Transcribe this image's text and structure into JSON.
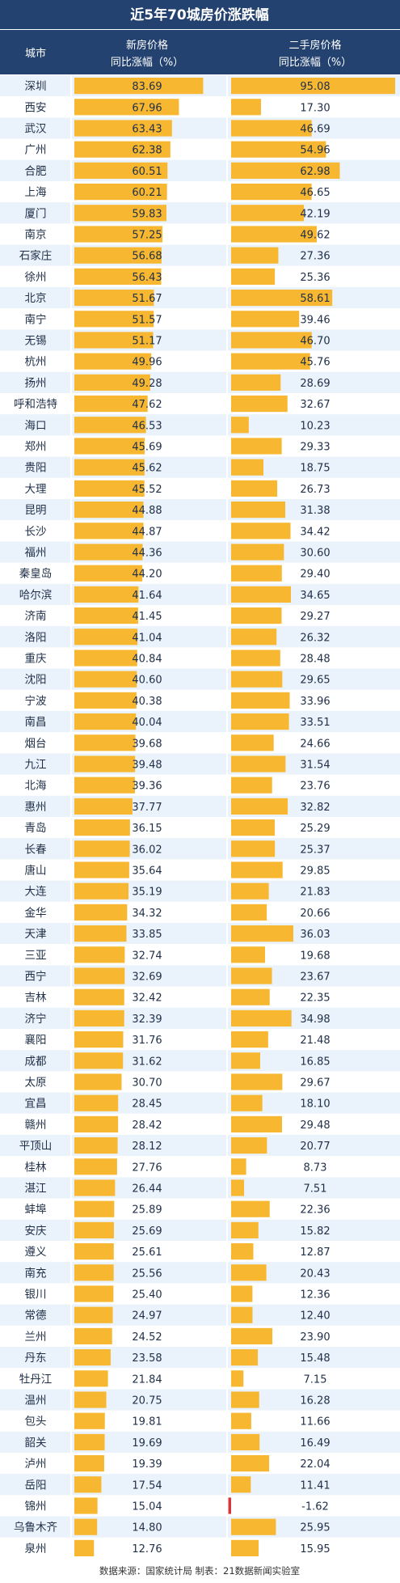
{
  "chart_data": {
    "type": "bar",
    "title": "近5年70城房价涨跌幅",
    "header": {
      "city": "城市",
      "new_line1": "新房价格",
      "new_line2": "同比涨幅（%）",
      "second_line1": "二手房价格",
      "second_line2": "同比涨幅（%）"
    },
    "categories": [
      "深圳",
      "西安",
      "武汉",
      "广州",
      "合肥",
      "上海",
      "厦门",
      "南京",
      "石家庄",
      "徐州",
      "北京",
      "南宁",
      "无锡",
      "杭州",
      "扬州",
      "呼和浩特",
      "海口",
      "郑州",
      "贵阳",
      "大理",
      "昆明",
      "长沙",
      "福州",
      "秦皇岛",
      "哈尔滨",
      "济南",
      "洛阳",
      "重庆",
      "沈阳",
      "宁波",
      "南昌",
      "烟台",
      "九江",
      "北海",
      "惠州",
      "青岛",
      "长春",
      "唐山",
      "大连",
      "金华",
      "天津",
      "三亚",
      "西宁",
      "吉林",
      "济宁",
      "襄阳",
      "成都",
      "太原",
      "宜昌",
      "赣州",
      "平顶山",
      "桂林",
      "湛江",
      "蚌埠",
      "安庆",
      "遵义",
      "南充",
      "银川",
      "常德",
      "兰州",
      "丹东",
      "牡丹江",
      "温州",
      "包头",
      "韶关",
      "泸州",
      "岳阳",
      "锦州",
      "乌鲁木齐",
      "泉州"
    ],
    "series": [
      {
        "name": "新房价格同比涨幅（%）",
        "values": [
          "83.69",
          "67.96",
          "63.43",
          "62.38",
          "60.51",
          "60.21",
          "59.83",
          "57.25",
          "56.68",
          "56.43",
          "51.67",
          "51.57",
          "51.17",
          "49.96",
          "49.28",
          "47.62",
          "46.53",
          "45.69",
          "45.62",
          "45.52",
          "44.88",
          "44.87",
          "44.36",
          "44.20",
          "41.64",
          "41.45",
          "41.04",
          "40.84",
          "40.60",
          "40.38",
          "40.04",
          "39.68",
          "39.48",
          "39.36",
          "37.77",
          "36.15",
          "36.02",
          "35.64",
          "35.19",
          "34.32",
          "33.85",
          "32.74",
          "32.69",
          "32.42",
          "32.39",
          "31.76",
          "31.62",
          "30.70",
          "28.45",
          "28.42",
          "28.12",
          "27.76",
          "26.44",
          "25.89",
          "25.69",
          "25.61",
          "25.56",
          "25.40",
          "24.97",
          "24.52",
          "23.58",
          "21.84",
          "20.75",
          "19.81",
          "19.69",
          "19.39",
          "17.54",
          "15.04",
          "14.80",
          "12.76"
        ]
      },
      {
        "name": "二手房价格同比涨幅（%）",
        "values": [
          "95.08",
          "17.30",
          "46.69",
          "54.96",
          "62.98",
          "46.65",
          "42.19",
          "49.62",
          "27.36",
          "25.36",
          "58.61",
          "39.46",
          "46.70",
          "45.76",
          "28.69",
          "32.67",
          "10.23",
          "29.33",
          "18.75",
          "26.73",
          "31.38",
          "34.42",
          "30.60",
          "29.40",
          "34.65",
          "29.27",
          "26.32",
          "28.48",
          "29.65",
          "33.96",
          "33.51",
          "24.66",
          "31.54",
          "23.76",
          "32.82",
          "25.29",
          "25.37",
          "29.85",
          "21.83",
          "20.66",
          "36.03",
          "19.68",
          "23.67",
          "22.35",
          "34.98",
          "21.48",
          "16.85",
          "29.67",
          "18.10",
          "29.48",
          "20.77",
          "8.73",
          "7.51",
          "22.36",
          "15.82",
          "12.87",
          "20.43",
          "12.36",
          "12.40",
          "23.90",
          "15.48",
          "7.15",
          "16.28",
          "11.66",
          "16.49",
          "22.04",
          "11.41",
          "-1.62",
          "25.95",
          "15.95"
        ]
      }
    ],
    "source": "数据来源：国家统计局   制表：21数据新闻实验室",
    "colors": {
      "bar": "#f7b731",
      "negative": "#d9343a",
      "header": "#23426f",
      "row_odd": "#eaf2fb",
      "row_even": "#ffffff"
    }
  }
}
